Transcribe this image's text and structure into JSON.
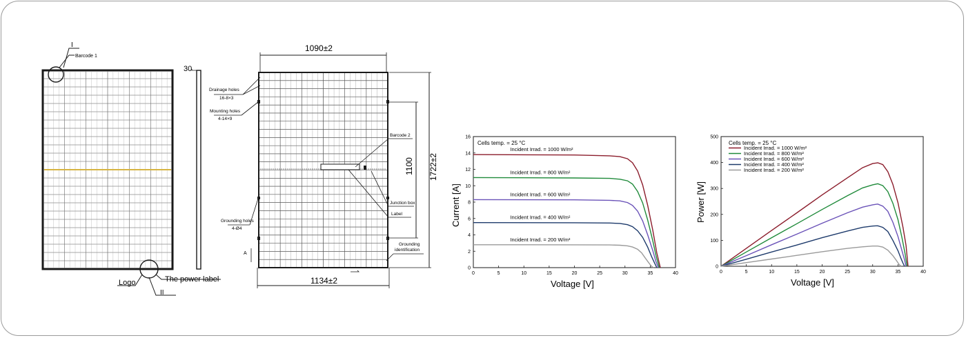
{
  "drawing": {
    "front": {
      "barcode_label": "Barcode 1",
      "callout_top": "I",
      "callout_bottom": "II",
      "logo_label": "Logo",
      "power_label": "The power label"
    },
    "side": {
      "thickness_label": "30"
    },
    "back": {
      "width_top": "1090±2",
      "width_bottom": "1134±2",
      "height_inner": "1100",
      "height_outer": "1722±2",
      "drainage_label": "Drainage holes",
      "drainage_spec": "16-8×3",
      "mounting_label": "Mounting holes",
      "mounting_spec": "4-14×9",
      "grounding_label": "Grounding holes",
      "grounding_spec": "4-Ø4",
      "section_label": "A",
      "barcode2_label": "Barcode 2",
      "junction_label": "Junction box",
      "label_label": "Label",
      "grounding_id_1": "Grounding",
      "grounding_id_2": "identification"
    }
  },
  "colors": {
    "line": "#1a1a1a",
    "yellow_line": "#d6b341",
    "c1000": "#8b1c2b",
    "c800": "#1f8a3a",
    "c600": "#6a52b8",
    "c400": "#1d3a6b",
    "c200": "#9a9a9a"
  },
  "chart_data": [
    {
      "type": "line",
      "xlabel": "Voltage [V]",
      "ylabel": "Current [A]",
      "xlim": [
        0,
        40
      ],
      "ylim": [
        0,
        16
      ],
      "xticks": [
        0,
        5,
        10,
        15,
        20,
        25,
        30,
        35,
        40
      ],
      "yticks": [
        0,
        2,
        4,
        6,
        8,
        10,
        12,
        14,
        16
      ],
      "annotation": "Cells temp. = 25 °C",
      "series": [
        {
          "name": "Incident Irrad. = 1000 W/m²",
          "color": "#8b1c2b",
          "x": [
            0,
            20,
            27,
            29,
            30.5,
            31.5,
            32.5,
            33.5,
            34.5,
            35.5,
            36.3,
            37
          ],
          "y": [
            13.8,
            13.75,
            13.65,
            13.55,
            13.3,
            12.8,
            11.8,
            10.1,
            7.6,
            4.6,
            1.8,
            0
          ]
        },
        {
          "name": "Incident Irrad. = 800 W/m²",
          "color": "#1f8a3a",
          "x": [
            0,
            20,
            27,
            29,
            30.5,
            31.5,
            32.5,
            33.5,
            34.5,
            35.5,
            36.2,
            36.8
          ],
          "y": [
            11.0,
            10.95,
            10.9,
            10.8,
            10.6,
            10.2,
            9.3,
            7.9,
            5.8,
            3.3,
            1.3,
            0
          ]
        },
        {
          "name": "Incident Irrad. = 600 W/m²",
          "color": "#6a52b8",
          "x": [
            0,
            20,
            27,
            29,
            30.5,
            31.5,
            32.5,
            33.5,
            34.5,
            35.5,
            36.1,
            36.6
          ],
          "y": [
            8.3,
            8.28,
            8.22,
            8.15,
            7.95,
            7.6,
            6.9,
            5.7,
            4.0,
            2.1,
            0.8,
            0
          ]
        },
        {
          "name": "Incident Irrad. = 400 W/m²",
          "color": "#1d3a6b",
          "x": [
            0,
            20,
            27,
            29,
            30.5,
            31.5,
            32.5,
            33.5,
            34.5,
            35.3,
            35.9,
            36.3
          ],
          "y": [
            5.5,
            5.48,
            5.45,
            5.4,
            5.25,
            5.0,
            4.5,
            3.7,
            2.5,
            1.3,
            0.5,
            0
          ]
        },
        {
          "name": "Incident Irrad. = 200 W/m²",
          "color": "#9a9a9a",
          "x": [
            0,
            20,
            27,
            29,
            30.5,
            31.5,
            32.5,
            33.3,
            34.0,
            34.7,
            35.2,
            35.6
          ],
          "y": [
            2.8,
            2.79,
            2.77,
            2.74,
            2.66,
            2.52,
            2.25,
            1.8,
            1.2,
            0.6,
            0.2,
            0
          ]
        }
      ]
    },
    {
      "type": "line",
      "xlabel": "Voltage [V]",
      "ylabel": "Power [W]",
      "xlim": [
        0,
        40
      ],
      "ylim": [
        0,
        500
      ],
      "xticks": [
        0,
        5,
        10,
        15,
        20,
        25,
        30,
        35,
        40
      ],
      "yticks": [
        0,
        100,
        200,
        300,
        400,
        500
      ],
      "annotation": "Cells temp. = 25 °C",
      "series": [
        {
          "name": "Incident Irrad. = 1000 W/m²",
          "color": "#8b1c2b",
          "x": [
            0,
            5,
            10,
            15,
            20,
            25,
            28,
            30,
            31,
            32,
            33,
            34,
            35,
            36,
            36.6,
            37
          ],
          "y": [
            0,
            69,
            138,
            206,
            275,
            341,
            380,
            396,
            399,
            392,
            365,
            316,
            245,
            150,
            80,
            0
          ]
        },
        {
          "name": "Incident Irrad. = 800 W/m²",
          "color": "#1f8a3a",
          "x": [
            0,
            5,
            10,
            15,
            20,
            25,
            28,
            30,
            31,
            32,
            33,
            34,
            35,
            35.8,
            36.4,
            36.8
          ],
          "y": [
            0,
            55,
            110,
            164,
            219,
            272,
            302,
            314,
            318,
            311,
            288,
            243,
            180,
            110,
            50,
            0
          ]
        },
        {
          "name": "Incident Irrad. = 600 W/m²",
          "color": "#6a52b8",
          "x": [
            0,
            5,
            10,
            15,
            20,
            25,
            28,
            30,
            31,
            32,
            33,
            34,
            35,
            35.8,
            36.3,
            36.6
          ],
          "y": [
            0,
            41,
            83,
            124,
            166,
            206,
            228,
            237,
            240,
            232,
            212,
            170,
            115,
            60,
            25,
            0
          ]
        },
        {
          "name": "Incident Irrad. = 400 W/m²",
          "color": "#1d3a6b",
          "x": [
            0,
            5,
            10,
            15,
            20,
            25,
            28,
            30,
            31,
            32,
            33,
            34,
            35,
            35.6,
            36.0,
            36.3
          ],
          "y": [
            0,
            27,
            55,
            82,
            110,
            136,
            150,
            155,
            156,
            150,
            134,
            100,
            60,
            30,
            12,
            0
          ]
        },
        {
          "name": "Incident Irrad. = 200 W/m²",
          "color": "#9a9a9a",
          "x": [
            0,
            5,
            10,
            15,
            20,
            25,
            28,
            30,
            31,
            32,
            33,
            34,
            34.7,
            35.2,
            35.6
          ],
          "y": [
            0,
            14,
            28,
            42,
            56,
            69,
            75,
            78,
            78,
            74,
            62,
            41,
            22,
            8,
            0
          ]
        }
      ]
    }
  ]
}
